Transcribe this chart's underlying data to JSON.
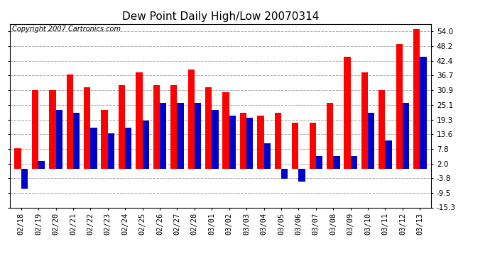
{
  "title": "Dew Point Daily High/Low 20070314",
  "copyright": "Copyright 2007 Cartronics.com",
  "dates": [
    "02/18",
    "02/19",
    "02/20",
    "02/21",
    "02/22",
    "02/23",
    "02/24",
    "02/25",
    "02/26",
    "02/27",
    "02/28",
    "03/01",
    "03/02",
    "03/03",
    "03/04",
    "03/05",
    "03/06",
    "03/07",
    "03/08",
    "03/09",
    "03/10",
    "03/11",
    "03/12",
    "03/13"
  ],
  "highs": [
    8,
    31,
    31,
    37,
    32,
    23,
    33,
    38,
    33,
    33,
    39,
    32,
    30,
    22,
    21,
    22,
    18,
    18,
    26,
    44,
    38,
    31,
    49,
    55
  ],
  "lows": [
    -8,
    3,
    23,
    22,
    16,
    14,
    16,
    19,
    26,
    26,
    26,
    23,
    21,
    20,
    10,
    -4,
    -5,
    5,
    5,
    5,
    22,
    11,
    26,
    44
  ],
  "high_color": "#ff0000",
  "low_color": "#0000cc",
  "background_color": "#ffffff",
  "plot_bg_color": "#ffffff",
  "grid_color": "#aaaaaa",
  "yticks": [
    54.0,
    48.2,
    42.4,
    36.7,
    30.9,
    25.1,
    19.3,
    13.6,
    7.8,
    2.0,
    -3.8,
    -9.5,
    -15.3
  ],
  "ymin": -15.3,
  "ymax": 57.0,
  "bar_width": 0.38,
  "title_fontsize": 11,
  "tick_fontsize": 7.5,
  "copyright_fontsize": 7
}
